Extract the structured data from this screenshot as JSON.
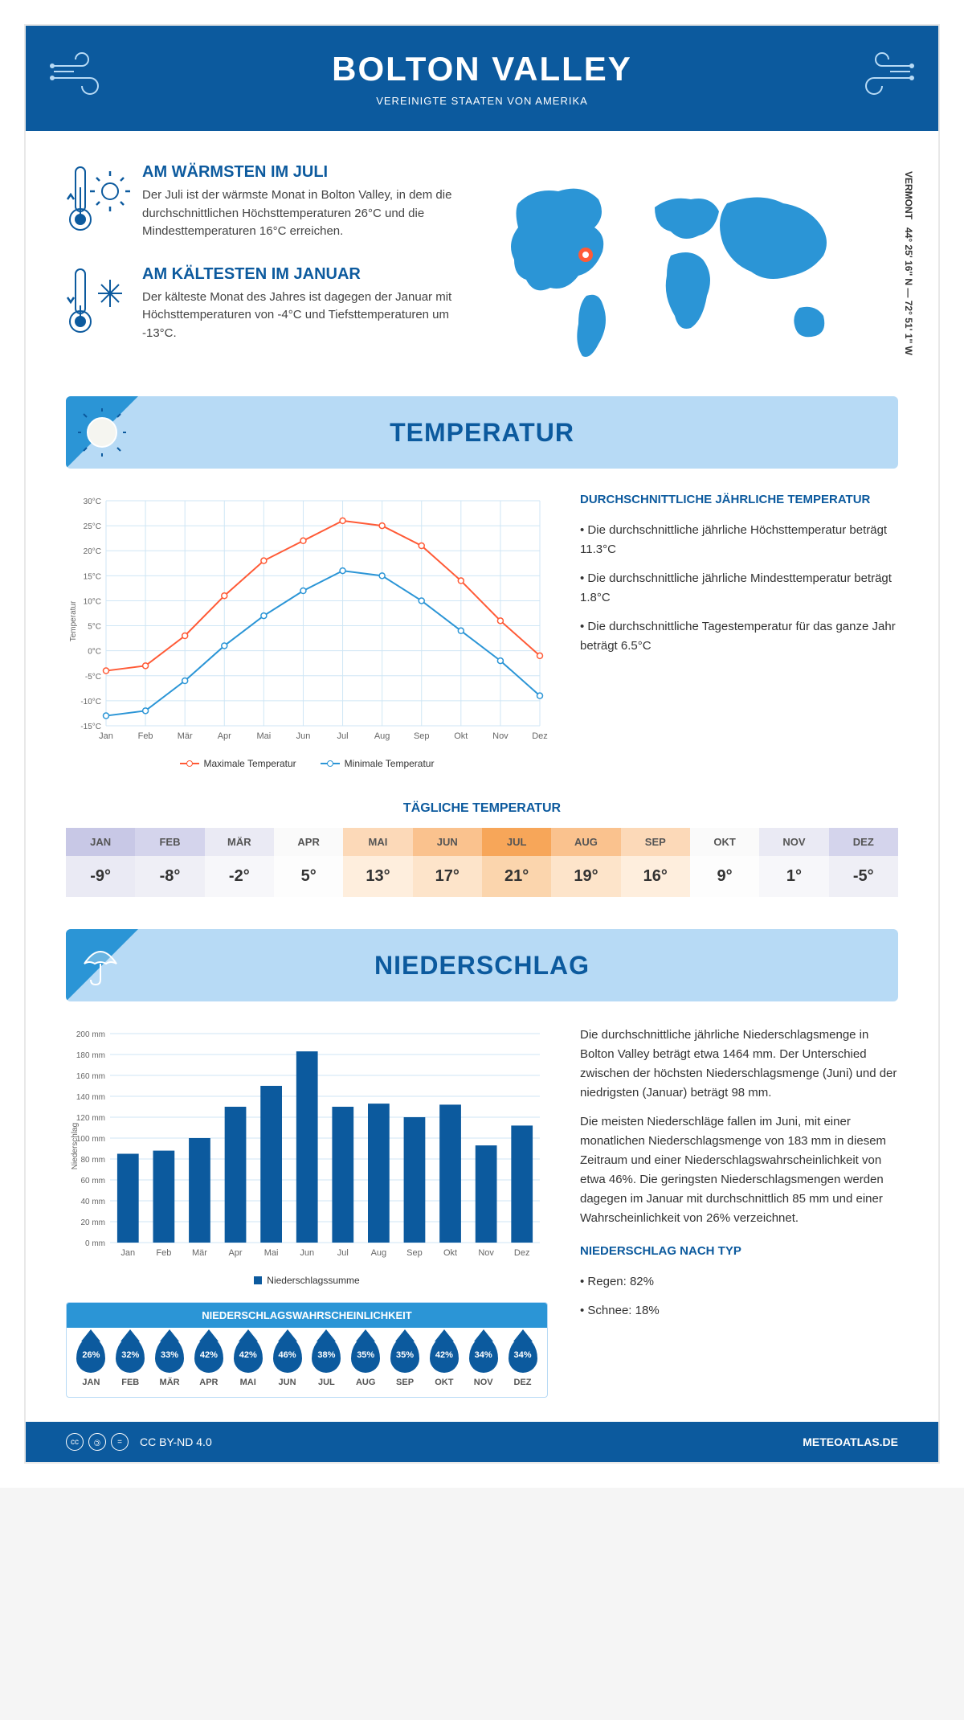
{
  "header": {
    "title": "BOLTON VALLEY",
    "subtitle": "VEREINIGTE STAATEN VON AMERIKA"
  },
  "location": {
    "region": "VERMONT",
    "coordinates": "44° 25' 16'' N — 72° 51' 1'' W",
    "marker_color": "#ff5a36"
  },
  "facts": {
    "warm": {
      "title": "AM WÄRMSTEN IM JULI",
      "text": "Der Juli ist der wärmste Monat in Bolton Valley, in dem die durchschnittlichen Höchsttemperaturen 26°C und die Mindesttemperaturen 16°C erreichen."
    },
    "cold": {
      "title": "AM KÄLTESTEN IM JANUAR",
      "text": "Der kälteste Monat des Jahres ist dagegen der Januar mit Höchsttemperaturen von -4°C und Tiefsttemperaturen um -13°C."
    }
  },
  "temperature": {
    "section_title": "TEMPERATUR",
    "info_title": "DURCHSCHNITTLICHE JÄHRLICHE TEMPERATUR",
    "bullets": [
      "Die durchschnittliche jährliche Höchsttemperatur beträgt 11.3°C",
      "Die durchschnittliche jährliche Mindesttemperatur beträgt 1.8°C",
      "Die durchschnittliche Tagestemperatur für das ganze Jahr beträgt 6.5°C"
    ],
    "chart": {
      "months": [
        "Jan",
        "Feb",
        "Mär",
        "Apr",
        "Mai",
        "Jun",
        "Jul",
        "Aug",
        "Sep",
        "Okt",
        "Nov",
        "Dez"
      ],
      "max": [
        -4,
        -3,
        3,
        11,
        18,
        22,
        26,
        25,
        21,
        14,
        6,
        -1
      ],
      "min": [
        -13,
        -12,
        -6,
        1,
        7,
        12,
        16,
        15,
        10,
        4,
        -2,
        -9
      ],
      "max_color": "#ff5a36",
      "min_color": "#2b95d6",
      "ylabel": "Temperatur",
      "ylim": [
        -15,
        30
      ],
      "ytick_step": 5,
      "legend_max": "Maximale Temperatur",
      "legend_min": "Minimale Temperatur",
      "grid_color": "#cfe6f5"
    },
    "daily": {
      "title": "TÄGLICHE TEMPERATUR",
      "months": [
        "JAN",
        "FEB",
        "MÄR",
        "APR",
        "MAI",
        "JUN",
        "JUL",
        "AUG",
        "SEP",
        "OKT",
        "NOV",
        "DEZ"
      ],
      "values": [
        "-9°",
        "-8°",
        "-2°",
        "5°",
        "13°",
        "17°",
        "21°",
        "19°",
        "16°",
        "9°",
        "1°",
        "-5°"
      ],
      "head_colors": [
        "#c8c8e6",
        "#d4d4ec",
        "#eaeaf4",
        "#fafafa",
        "#fcd9b8",
        "#fac28e",
        "#f7a659",
        "#fac28e",
        "#fcd9b8",
        "#fafafa",
        "#eaeaf4",
        "#d4d4ec"
      ],
      "val_colors": [
        "#eaeaf4",
        "#efeff6",
        "#f7f7fa",
        "#fdfdfd",
        "#feeedd",
        "#fde4ca",
        "#fbd5ad",
        "#fde4ca",
        "#feeedd",
        "#fdfdfd",
        "#f7f7fa",
        "#efeff6"
      ]
    }
  },
  "precipitation": {
    "section_title": "NIEDERSCHLAG",
    "text1": "Die durchschnittliche jährliche Niederschlagsmenge in Bolton Valley beträgt etwa 1464 mm. Der Unterschied zwischen der höchsten Niederschlagsmenge (Juni) und der niedrigsten (Januar) beträgt 98 mm.",
    "text2": "Die meisten Niederschläge fallen im Juni, mit einer monatlichen Niederschlagsmenge von 183 mm in diesem Zeitraum und einer Niederschlagswahrscheinlichkeit von etwa 46%. Die geringsten Niederschlagsmengen werden dagegen im Januar mit durchschnittlich 85 mm und einer Wahrscheinlichkeit von 26% verzeichnet.",
    "type_title": "NIEDERSCHLAG NACH TYP",
    "type_bullets": [
      "Regen: 82%",
      "Schnee: 18%"
    ],
    "chart": {
      "months": [
        "Jan",
        "Feb",
        "Mär",
        "Apr",
        "Mai",
        "Jun",
        "Jul",
        "Aug",
        "Sep",
        "Okt",
        "Nov",
        "Dez"
      ],
      "values": [
        85,
        88,
        100,
        130,
        150,
        183,
        130,
        133,
        120,
        132,
        93,
        112
      ],
      "bar_color": "#0c5a9e",
      "ylabel": "Niederschlag",
      "ylim": [
        0,
        200
      ],
      "ytick_step": 20,
      "legend": "Niederschlagssumme",
      "grid_color": "#cfe6f5"
    },
    "probability": {
      "title": "NIEDERSCHLAGSWAHRSCHEINLICHKEIT",
      "months": [
        "JAN",
        "FEB",
        "MÄR",
        "APR",
        "MAI",
        "JUN",
        "JUL",
        "AUG",
        "SEP",
        "OKT",
        "NOV",
        "DEZ"
      ],
      "values": [
        "26%",
        "32%",
        "33%",
        "42%",
        "42%",
        "46%",
        "38%",
        "35%",
        "35%",
        "42%",
        "34%",
        "34%"
      ]
    }
  },
  "footer": {
    "license": "CC BY-ND 4.0",
    "site": "METEOATLAS.DE"
  },
  "colors": {
    "primary": "#0c5a9e",
    "light_blue": "#b7daf5",
    "accent_blue": "#2b95d6"
  }
}
